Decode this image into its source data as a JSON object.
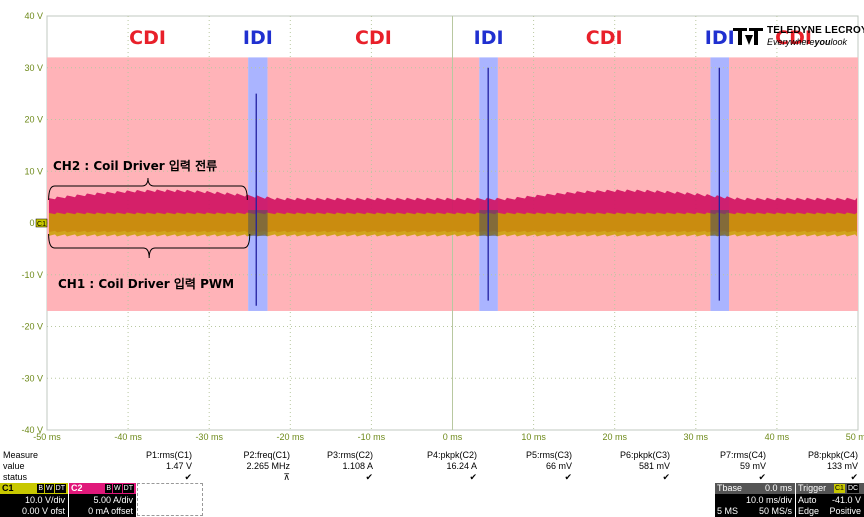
{
  "brand": {
    "name": "TELEDYNE LECROY",
    "tagline": "Everywhereyoulook",
    "tagline_bold": "you"
  },
  "colors": {
    "plot_bg": "#ffffff",
    "grid": "#b8c8a0",
    "axis_text": "#6e8a1a",
    "cdi_region": "#ffb3b8",
    "idi_region": "#aab4ff",
    "cdi_label": "#e8202a",
    "idi_label": "#2030d0",
    "ch1_trace": "#c8a000",
    "ch2_trace": "#d01060",
    "ch3_trace": "#2020a0",
    "c1_badge": "#c8c800",
    "c2_badge": "#e0187a"
  },
  "chart_data": {
    "type": "line",
    "xlim": [
      -50,
      50
    ],
    "ylim": [
      -40,
      40
    ],
    "x_ticks": [
      -50,
      -40,
      -30,
      -20,
      -10,
      0,
      10,
      20,
      30,
      40,
      50
    ],
    "x_tick_labels": [
      "-50 ms",
      "-40 ms",
      "-30 ms",
      "-20 ms",
      "-10 ms",
      "0 ms",
      "10 ms",
      "20 ms",
      "30 ms",
      "40 ms",
      "50 ms"
    ],
    "y_ticks": [
      40,
      30,
      20,
      10,
      0,
      -10,
      -20,
      -30,
      -40
    ],
    "y_tick_labels": [
      "40 V",
      "30 V",
      "20 V",
      "10 V",
      "0 V",
      "-10 V",
      "-20 V",
      "-30 V",
      "-40 V"
    ],
    "regions": [
      {
        "label": "CDI",
        "kind": "cdi",
        "x0": -50,
        "x1": -25.2
      },
      {
        "label": "IDI",
        "kind": "idi",
        "x0": -25.2,
        "x1": -22.8
      },
      {
        "label": "CDI",
        "kind": "cdi",
        "x0": -22.8,
        "x1": 3.3
      },
      {
        "label": "IDI",
        "kind": "idi",
        "x0": 3.3,
        "x1": 5.6
      },
      {
        "label": "CDI",
        "kind": "cdi",
        "x0": 5.6,
        "x1": 31.8
      },
      {
        "label": "IDI",
        "kind": "idi",
        "x0": 31.8,
        "x1": 34.1
      },
      {
        "label": "CDI",
        "kind": "cdi",
        "x0": 34.1,
        "x1": 50
      }
    ],
    "region_y_range": [
      -17,
      32
    ],
    "spikes": [
      {
        "x": -24.2,
        "ymax": 25,
        "ymin": -16
      },
      {
        "x": 4.4,
        "ymax": 30,
        "ymin": -15
      },
      {
        "x": 32.9,
        "ymax": 30,
        "ymin": -15
      }
    ],
    "series": [
      {
        "name": "C1",
        "band": [
          -2,
          2
        ]
      },
      {
        "name": "C2",
        "band": [
          0,
          5
        ]
      }
    ],
    "annotations": [
      {
        "text": "CH2 : Coil Driver 입력 전류",
        "x": -49,
        "y": 11.5
      },
      {
        "text": "CH1 : Coil Driver 입력 PWM",
        "x": -48,
        "y": -12
      }
    ],
    "ground_marker": "C1"
  },
  "measure": {
    "row_labels": [
      "Measure",
      "value",
      "status"
    ],
    "params": [
      {
        "name": "P1:rms(C1)",
        "value": "1.47 V",
        "status": "✔"
      },
      {
        "name": "P2:freq(C1)",
        "value": "2.265 MHz",
        "status": "⊼"
      },
      {
        "name": "P3:rms(C2)",
        "value": "1.108 A",
        "status": "✔"
      },
      {
        "name": "P4:pkpk(C2)",
        "value": "16.24 A",
        "status": "✔"
      },
      {
        "name": "P5:rms(C3)",
        "value": "66 mV",
        "status": "✔"
      },
      {
        "name": "P6:pkpk(C3)",
        "value": "581 mV",
        "status": "✔"
      },
      {
        "name": "P7:rms(C4)",
        "value": "59 mV",
        "status": "✔"
      },
      {
        "name": "P8:pkpk(C4)",
        "value": "133 mV",
        "status": "✔"
      }
    ]
  },
  "channels": [
    {
      "name": "C1",
      "badges": [
        "B",
        "W",
        "DT"
      ],
      "scale": "10.0 V/div",
      "offset": "0.00 V ofst"
    },
    {
      "name": "C2",
      "badges": [
        "B",
        "W",
        "DT"
      ],
      "scale": "5.00 A/div",
      "offset": "0 mA offset"
    }
  ],
  "timebase": {
    "title": "Tbase",
    "delay": "0.0 ms",
    "scale": "10.0 ms/div",
    "samples": "5 MS",
    "rate": "50 MS/s"
  },
  "trigger": {
    "title": "Trigger",
    "badges": [
      "C1",
      "DC"
    ],
    "mode": "Auto",
    "level": "-41.0 V",
    "type": "Edge",
    "slope": "Positive"
  }
}
